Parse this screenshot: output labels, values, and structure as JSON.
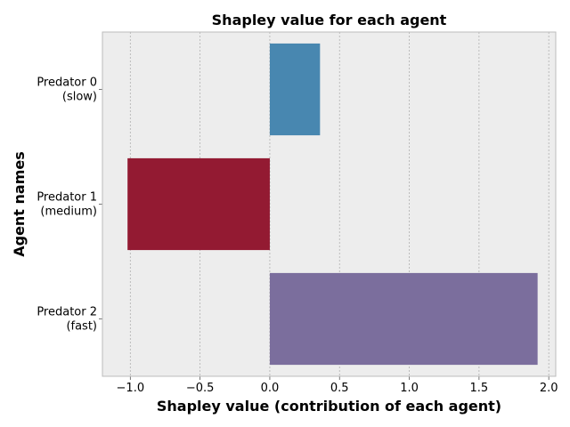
{
  "chart_data": {
    "type": "bar",
    "orientation": "horizontal",
    "title": "Shapley value for each agent",
    "xlabel": "Shapley value (contribution of each agent)",
    "ylabel": "Agent names",
    "categories": [
      [
        "Predator 0",
        "(slow)"
      ],
      [
        "Predator 1",
        "(medium)"
      ],
      [
        "Predator 2",
        "(fast)"
      ]
    ],
    "values": [
      0.36,
      -1.02,
      1.92
    ],
    "colors": [
      "#4887b0",
      "#931a32",
      "#7b6e9d"
    ],
    "xlim": [
      -1.2,
      2.05
    ],
    "xticks": [
      -1.0,
      -0.5,
      0.0,
      0.5,
      1.0,
      1.5,
      2.0
    ],
    "xtick_labels": [
      "−1.0",
      "−0.5",
      "0.0",
      "0.5",
      "1.0",
      "1.5",
      "2.0"
    ],
    "grid": true,
    "background": "#ededed"
  }
}
